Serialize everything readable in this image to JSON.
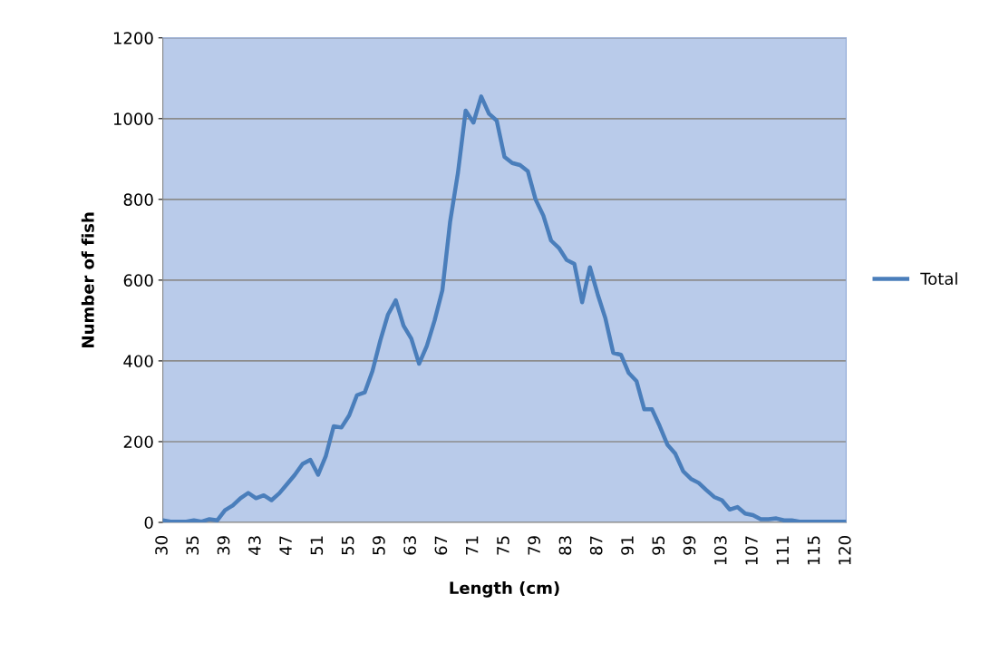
{
  "chart_data": {
    "type": "line",
    "xlabel": "Length (cm)",
    "ylabel": "Number of fish",
    "categories": [
      "30",
      null,
      null,
      null,
      "35",
      null,
      null,
      null,
      "39",
      null,
      null,
      null,
      "43",
      null,
      null,
      null,
      "47",
      null,
      null,
      null,
      "51",
      null,
      null,
      null,
      "55",
      null,
      null,
      null,
      "59",
      null,
      null,
      null,
      "63",
      null,
      null,
      null,
      "67",
      null,
      null,
      null,
      "71",
      null,
      null,
      null,
      "75",
      null,
      null,
      null,
      "79",
      null,
      null,
      null,
      "83",
      null,
      null,
      null,
      "87",
      null,
      null,
      null,
      "91",
      null,
      null,
      null,
      "95",
      null,
      null,
      null,
      "99",
      null,
      null,
      null,
      "103",
      null,
      null,
      null,
      "107",
      null,
      null,
      null,
      "111",
      null,
      null,
      null,
      "115",
      null,
      null,
      null,
      "120"
    ],
    "series": [
      {
        "name": "Total",
        "color": "#4a7ebb",
        "values": [
          5,
          2,
          2,
          2,
          5,
          2,
          8,
          5,
          30,
          42,
          60,
          73,
          60,
          67,
          55,
          72,
          95,
          118,
          145,
          155,
          118,
          165,
          238,
          235,
          265,
          315,
          322,
          375,
          450,
          515,
          550,
          487,
          455,
          393,
          437,
          500,
          575,
          745,
          865,
          1020,
          990,
          1055,
          1012,
          995,
          905,
          890,
          885,
          870,
          800,
          760,
          698,
          680,
          650,
          640,
          545,
          632,
          565,
          505,
          420,
          415,
          370,
          350,
          280,
          280,
          238,
          192,
          170,
          127,
          108,
          98,
          80,
          63,
          55,
          32,
          38,
          22,
          18,
          8,
          8,
          10,
          5,
          5,
          2,
          2,
          2,
          2,
          2,
          2,
          2
        ]
      }
    ],
    "ylim": [
      0,
      1200
    ],
    "yticks": [
      0,
      200,
      400,
      600,
      800,
      1000,
      1200
    ],
    "grid": "y",
    "legend": "right",
    "marker": "none",
    "line_style": "solid"
  }
}
